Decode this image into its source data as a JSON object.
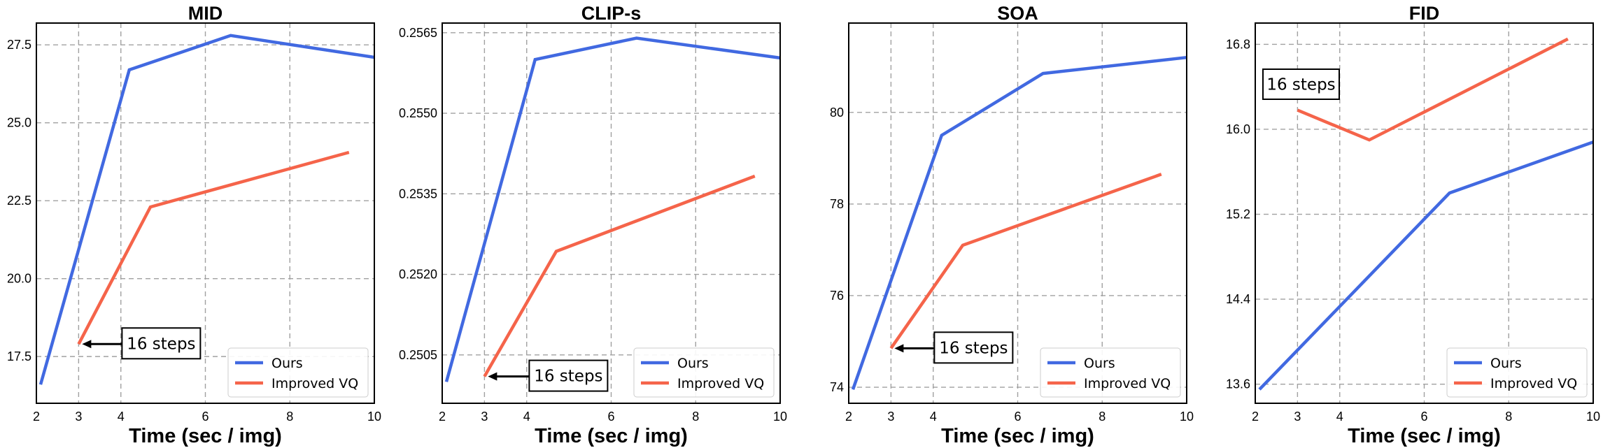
{
  "colors": {
    "ours": "#4169e1",
    "improved_vq": "#f5644a",
    "grid": "#a0a0a0"
  },
  "chart_data": [
    {
      "type": "line",
      "title": "MID",
      "xlabel": "Time (sec / img)",
      "ylabel": "",
      "xlim": [
        2,
        10
      ],
      "xticks": [
        2,
        3,
        4,
        6,
        8,
        10
      ],
      "xtick_labels": [
        "2",
        "3",
        "4",
        "6",
        "8",
        "10"
      ],
      "ylim": [
        16.0,
        28.2
      ],
      "yticks": [
        17.5,
        20.0,
        22.5,
        25.0,
        27.5
      ],
      "ytick_labels": [
        "17.5",
        "20.0",
        "22.5",
        "25.0",
        "27.5"
      ],
      "grid": true,
      "legend": "lower-right",
      "series": [
        {
          "name": "Ours",
          "x": [
            2.1,
            4.2,
            6.6,
            10.0
          ],
          "y": [
            16.6,
            26.7,
            27.8,
            27.1
          ]
        },
        {
          "name": "Improved VQ",
          "x": [
            3.0,
            4.7,
            9.4
          ],
          "y": [
            17.9,
            22.3,
            24.05
          ]
        }
      ],
      "annotation": {
        "text": "16 steps",
        "point": [
          3.0,
          17.9
        ],
        "side": "right"
      }
    },
    {
      "type": "line",
      "title": "CLIP-s",
      "xlabel": "Time (sec / img)",
      "ylabel": "",
      "xlim": [
        2,
        10
      ],
      "xticks": [
        2,
        3,
        4,
        6,
        8,
        10
      ],
      "xtick_labels": [
        "2",
        "3",
        "4",
        "6",
        "8",
        "10"
      ],
      "ylim": [
        0.2496,
        0.25668
      ],
      "yticks": [
        0.2505,
        0.252,
        0.2535,
        0.255,
        0.2565
      ],
      "ytick_labels": [
        "0.2505",
        "0.2520",
        "0.2535",
        "0.2550",
        "0.2565"
      ],
      "grid": true,
      "legend": "lower-right",
      "series": [
        {
          "name": "Ours",
          "x": [
            2.1,
            4.2,
            6.6,
            10.0
          ],
          "y": [
            0.25,
            0.256,
            0.2564,
            0.25603
          ]
        },
        {
          "name": "Improved VQ",
          "x": [
            3.0,
            4.7,
            9.4
          ],
          "y": [
            0.2501,
            0.25243,
            0.25383
          ]
        }
      ],
      "annotation": {
        "text": "16 steps",
        "point": [
          3.0,
          0.2501
        ],
        "side": "right"
      }
    },
    {
      "type": "line",
      "title": "SOA",
      "xlabel": "Time (sec / img)",
      "ylabel": "",
      "xlim": [
        2,
        10
      ],
      "xticks": [
        2,
        3,
        4,
        6,
        8,
        10
      ],
      "xtick_labels": [
        "2",
        "3",
        "4",
        "6",
        "8",
        "10"
      ],
      "ylim": [
        73.65,
        81.95
      ],
      "yticks": [
        74,
        76,
        78,
        80
      ],
      "ytick_labels": [
        "74",
        "76",
        "78",
        "80"
      ],
      "grid": true,
      "legend": "lower-right",
      "series": [
        {
          "name": "Ours",
          "x": [
            2.1,
            4.2,
            6.6,
            10.0
          ],
          "y": [
            73.95,
            79.5,
            80.85,
            81.2
          ]
        },
        {
          "name": "Improved VQ",
          "x": [
            3.0,
            4.7,
            9.4
          ],
          "y": [
            74.85,
            77.1,
            78.65
          ]
        }
      ],
      "annotation": {
        "text": "16 steps",
        "point": [
          3.0,
          74.85
        ],
        "side": "right"
      }
    },
    {
      "type": "line",
      "title": "FID",
      "xlabel": "Time (sec / img)",
      "ylabel": "",
      "xlim": [
        2,
        10
      ],
      "xticks": [
        2,
        3,
        4,
        6,
        8,
        10
      ],
      "xtick_labels": [
        "2",
        "3",
        "4",
        "6",
        "8",
        "10"
      ],
      "ylim": [
        13.42,
        17.0
      ],
      "yticks": [
        13.6,
        14.4,
        15.2,
        16.0,
        16.8
      ],
      "ytick_labels": [
        "13.6",
        "14.4",
        "15.2",
        "16.0",
        "16.8"
      ],
      "grid": true,
      "legend": "lower-right",
      "series": [
        {
          "name": "Ours",
          "x": [
            2.1,
            6.6,
            10.0
          ],
          "y": [
            13.55,
            15.4,
            15.88
          ]
        },
        {
          "name": "Improved VQ",
          "x": [
            3.0,
            4.7,
            9.4
          ],
          "y": [
            16.18,
            15.9,
            16.85
          ]
        }
      ],
      "annotation": {
        "text": "16 steps",
        "side": "none"
      }
    }
  ]
}
